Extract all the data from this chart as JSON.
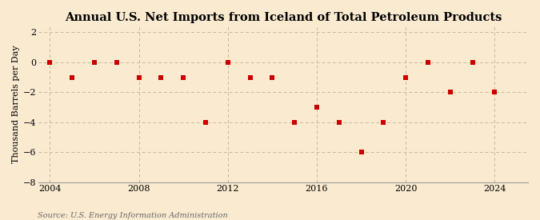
{
  "title": "Annual U.S. Net Imports from Iceland of Total Petroleum Products",
  "ylabel": "Thousand Barrels per Day",
  "source": "Source: U.S. Energy Information Administration",
  "years": [
    2004,
    2005,
    2006,
    2007,
    2008,
    2009,
    2010,
    2011,
    2012,
    2013,
    2014,
    2015,
    2016,
    2017,
    2018,
    2019,
    2020,
    2021,
    2022,
    2023,
    2024
  ],
  "values": [
    0,
    -1,
    0,
    0,
    -1,
    -1,
    -1,
    -4,
    0,
    -1,
    -1,
    -4,
    -3,
    -4,
    -6,
    -4,
    -1,
    0,
    -2,
    0,
    -2
  ],
  "marker_color": "#cc0000",
  "marker_size": 4,
  "bg_color": "#faebd0",
  "grid_color": "#c8b89a",
  "xlim": [
    2003.5,
    2025.5
  ],
  "ylim": [
    -8,
    2.4
  ],
  "yticks": [
    -8,
    -6,
    -4,
    -2,
    0,
    2
  ],
  "xticks": [
    2004,
    2008,
    2012,
    2016,
    2020,
    2024
  ],
  "title_fontsize": 10.5,
  "label_fontsize": 8,
  "tick_fontsize": 8,
  "source_fontsize": 7
}
